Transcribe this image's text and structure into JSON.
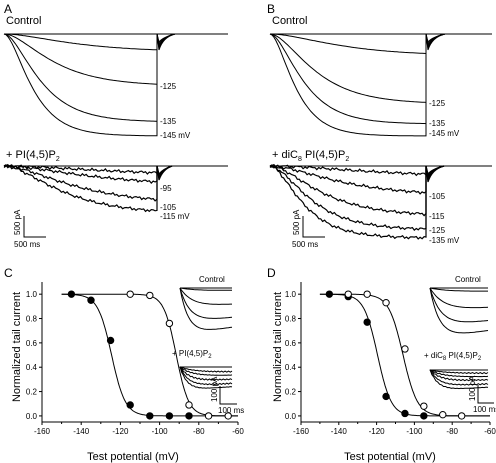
{
  "figure": {
    "A": {
      "letter": "A",
      "control_title": "Control",
      "control_levels": [
        "-125",
        "-135",
        "-145 mV"
      ],
      "treat_title_pre": "+ PI(4,5)P",
      "treat_title_sub": "2",
      "treat_levels": [
        "-95",
        "-105",
        "-115 mV"
      ],
      "scale_current": "500 pA",
      "scale_time": "500 ms"
    },
    "B": {
      "letter": "B",
      "control_title": "Control",
      "control_levels": [
        "-125",
        "-135",
        "-145 mV"
      ],
      "treat_title_pre": "+ diC",
      "treat_title_sub1": "8",
      "treat_title_mid": " PI(4,5)P",
      "treat_title_sub2": "2",
      "treat_levels": [
        "-105",
        "-115",
        "-125",
        "-135 mV"
      ],
      "scale_current": "500 pA",
      "scale_time": "500 ms"
    },
    "C": {
      "letter": "C",
      "inset_control": "Control",
      "inset_treat_pre": "+ PI(4,5)P",
      "inset_treat_sub": "2",
      "inset_scale_current": "100 pA",
      "inset_scale_time": "100 ms"
    },
    "D": {
      "letter": "D",
      "inset_control": "Control",
      "inset_treat_pre": "+ diC",
      "inset_treat_sub1": "8",
      "inset_treat_mid": " PI(4,5)P",
      "inset_treat_sub2": "2",
      "inset_scale_current": "100 pA",
      "inset_scale_time": "100 ms"
    }
  },
  "chart_data": [
    {
      "panel": "C",
      "type": "scatter",
      "xlabel": "Test potential (mV)",
      "ylabel": "Normalized tail current",
      "xlim": [
        -160,
        -60
      ],
      "ylim": [
        -0.05,
        1.1
      ],
      "xticks": [
        -160,
        -140,
        -120,
        -100,
        -80,
        -60
      ],
      "yticks": [
        0.0,
        0.2,
        0.4,
        0.6,
        0.8,
        1.0
      ],
      "xtick_labels": [
        "-160",
        "-140",
        "-120",
        "-100",
        "-80",
        "-60"
      ],
      "ytick_labels": [
        "0.0",
        "0.2",
        "0.4",
        "0.6",
        "0.8",
        "1.0"
      ],
      "grid": false,
      "series": [
        {
          "marker": "filled-circle",
          "x": [
            -145,
            -135,
            -125,
            -115,
            -105,
            -95,
            -85
          ],
          "y": [
            1.0,
            0.95,
            0.62,
            0.09,
            0.0,
            0.0,
            0.0
          ],
          "fit_v_half": -124.5,
          "fit_slope": 3.5
        },
        {
          "marker": "open-circle",
          "x": [
            -115,
            -105,
            -95,
            -85,
            -75,
            -65
          ],
          "y": [
            1.0,
            0.99,
            0.76,
            0.09,
            0.0,
            0.0
          ],
          "fit_v_half": -91.5,
          "fit_slope": 3.2
        }
      ]
    },
    {
      "panel": "D",
      "type": "scatter",
      "xlabel": "Test potential (mV)",
      "ylabel": "Normalized tail current",
      "xlim": [
        -160,
        -60
      ],
      "ylim": [
        -0.05,
        1.1
      ],
      "xticks": [
        -160,
        -140,
        -120,
        -100,
        -80,
        -60
      ],
      "yticks": [
        0.0,
        0.2,
        0.4,
        0.6,
        0.8,
        1.0
      ],
      "xtick_labels": [
        "-160",
        "-140",
        "-120",
        "-100",
        "-80",
        "-60"
      ],
      "ytick_labels": [
        "0.0",
        "0.2",
        "0.4",
        "0.6",
        "0.8",
        "1.0"
      ],
      "grid": false,
      "series": [
        {
          "marker": "filled-circle",
          "x": [
            -145,
            -135,
            -125,
            -115,
            -105,
            -95
          ],
          "y": [
            1.0,
            0.98,
            0.77,
            0.16,
            0.02,
            0.0
          ],
          "fit_v_half": -119.5,
          "fit_slope": 3.6
        },
        {
          "marker": "open-circle",
          "x": [
            -135,
            -125,
            -115,
            -105,
            -95,
            -85,
            -75
          ],
          "y": [
            1.0,
            1.0,
            0.93,
            0.55,
            0.08,
            0.01,
            0.0
          ],
          "fit_v_half": -106.0,
          "fit_slope": 3.8
        }
      ]
    }
  ]
}
